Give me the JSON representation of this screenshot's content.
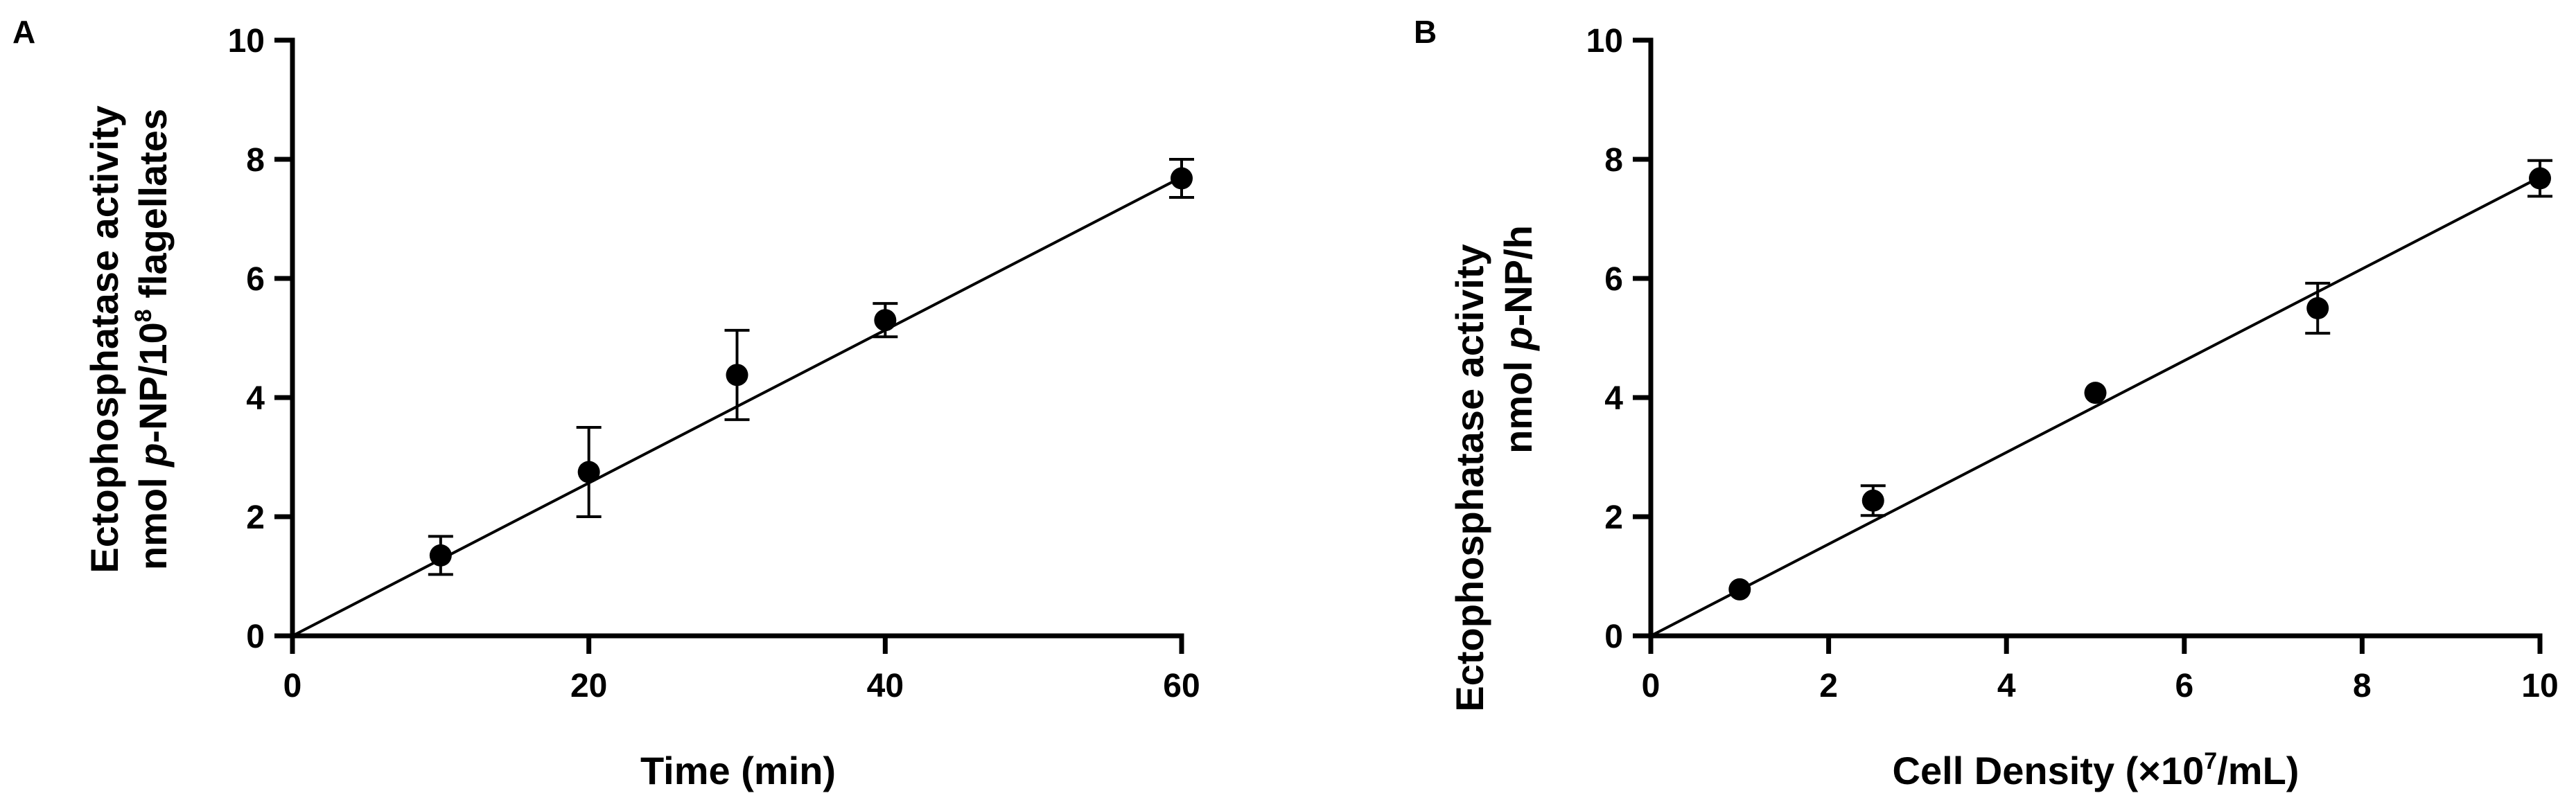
{
  "chart_data": [
    {
      "panel": "A",
      "type": "scatter",
      "title": "",
      "xlabel": "Time (min)",
      "ylabel_line1": "Ectophosphatase activity",
      "ylabel_line2_parts": [
        "nmol ",
        "p",
        "-NP/10",
        "8",
        " flagellates"
      ],
      "xlim": [
        0,
        60
      ],
      "ylim": [
        0,
        10
      ],
      "xticks": [
        0,
        20,
        40,
        60
      ],
      "yticks": [
        0,
        2,
        4,
        6,
        8,
        10
      ],
      "grid": false,
      "points": [
        {
          "x": 10,
          "y": 1.35,
          "err": 0.32
        },
        {
          "x": 20,
          "y": 2.75,
          "err": 0.75
        },
        {
          "x": 30,
          "y": 4.38,
          "err": 0.75
        },
        {
          "x": 40,
          "y": 5.3,
          "err": 0.28
        },
        {
          "x": 60,
          "y": 7.68,
          "err": 0.32
        }
      ],
      "fit_line": {
        "x": [
          0,
          60
        ],
        "y": [
          0,
          7.7
        ]
      }
    },
    {
      "panel": "B",
      "type": "scatter",
      "title": "",
      "xlabel_parts": [
        "Cell Density (×10",
        "7",
        "/mL)"
      ],
      "ylabel_line1": "Ectophosphatase activity",
      "ylabel_line2_parts": [
        "nmol ",
        "p",
        "-NP/h"
      ],
      "xlim": [
        0,
        10
      ],
      "ylim": [
        0,
        10
      ],
      "xticks": [
        0,
        2,
        4,
        6,
        8,
        10
      ],
      "yticks": [
        0,
        2,
        4,
        6,
        8,
        10
      ],
      "grid": false,
      "points": [
        {
          "x": 1,
          "y": 0.78,
          "err": 0
        },
        {
          "x": 2.5,
          "y": 2.27,
          "err": 0.25
        },
        {
          "x": 5,
          "y": 4.08,
          "err": 0
        },
        {
          "x": 7.5,
          "y": 5.5,
          "err": 0.42
        },
        {
          "x": 10,
          "y": 7.68,
          "err": 0.3
        }
      ],
      "fit_line": {
        "x": [
          0,
          10
        ],
        "y": [
          0,
          7.7
        ]
      }
    }
  ]
}
